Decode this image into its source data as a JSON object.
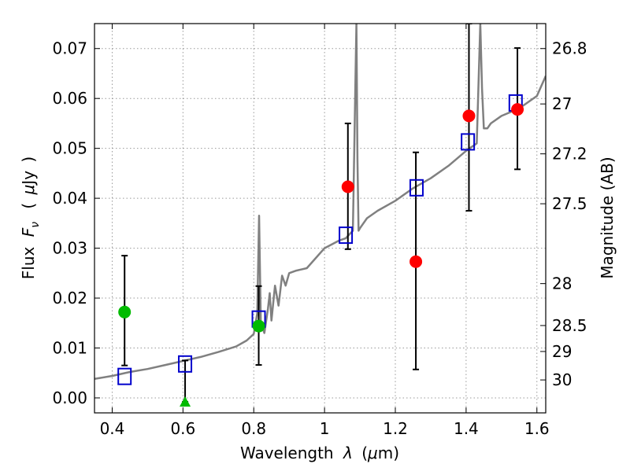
{
  "chart_data": {
    "type": "scatter",
    "xlabel": {
      "pre": "Wavelength",
      "lambda": "λ",
      "paren_open": "(",
      "mu": "μ",
      "unit": "m",
      "paren_close": ")"
    },
    "ylabel": {
      "pre": "Flux",
      "F": "F",
      "nu": "ν",
      "paren_open": "(",
      "mu": "μ",
      "unit": "Jy",
      "paren_close": ")"
    },
    "y2label": "Magnitude (AB)",
    "xlim": [
      0.35,
      1.625
    ],
    "ylim": [
      -0.003,
      0.075
    ],
    "x_ticks": [
      0.4,
      0.6,
      0.8,
      1.0,
      1.2,
      1.4,
      1.6
    ],
    "x_tick_labels": [
      "0.4",
      "0.6",
      "0.8",
      "1",
      "1.2",
      "1.4",
      "1.6"
    ],
    "y_ticks": [
      0.0,
      0.01,
      0.02,
      0.03,
      0.04,
      0.05,
      0.06,
      0.07
    ],
    "y_tick_labels": [
      "0.00",
      "0.01",
      "0.02",
      "0.03",
      "0.04",
      "0.05",
      "0.06",
      "0.07"
    ],
    "y2_tick_labels": [
      "26.8",
      "27",
      "27.2",
      "27.5",
      "28",
      "28.5",
      "29",
      "30"
    ],
    "y2_tick_flux": [
      0.07,
      0.0589,
      0.0489,
      0.0389,
      0.0229,
      0.0145,
      0.0093,
      0.0036
    ],
    "grid": true,
    "colors": {
      "model_line": "#808080",
      "model_points": "#0000cc",
      "detections": "#ff0000",
      "ground_points": "#00bb00",
      "errorbars": "#000000",
      "grid": "#999999"
    },
    "series": [
      {
        "role": "model_spectrum_line",
        "x": [
          0.35,
          0.4,
          0.45,
          0.5,
          0.55,
          0.6,
          0.65,
          0.7,
          0.75,
          0.78,
          0.8,
          0.81,
          0.815,
          0.82,
          0.83,
          0.84,
          0.845,
          0.85,
          0.86,
          0.87,
          0.88,
          0.89,
          0.9,
          0.92,
          0.95,
          1.0,
          1.04,
          1.06,
          1.08,
          1.09,
          1.093,
          1.096,
          1.1,
          1.12,
          1.15,
          1.2,
          1.25,
          1.3,
          1.35,
          1.4,
          1.43,
          1.44,
          1.445,
          1.45,
          1.46,
          1.47,
          1.5,
          1.55,
          1.6,
          1.625
        ],
        "y": [
          0.0038,
          0.0044,
          0.0052,
          0.0058,
          0.0066,
          0.0074,
          0.0082,
          0.0092,
          0.0103,
          0.0115,
          0.0128,
          0.017,
          0.0365,
          0.015,
          0.013,
          0.0178,
          0.021,
          0.0155,
          0.0225,
          0.0185,
          0.0245,
          0.0225,
          0.025,
          0.0255,
          0.026,
          0.03,
          0.0315,
          0.032,
          0.0335,
          0.075,
          0.048,
          0.0335,
          0.034,
          0.036,
          0.0375,
          0.0395,
          0.042,
          0.044,
          0.0465,
          0.0495,
          0.051,
          0.075,
          0.062,
          0.054,
          0.054,
          0.055,
          0.0565,
          0.058,
          0.0605,
          0.0645
        ]
      },
      {
        "role": "model_photometry",
        "marker": "square",
        "x": [
          0.435,
          0.606,
          0.814,
          1.06,
          1.26,
          1.405,
          1.54
        ],
        "y": [
          0.0043,
          0.0068,
          0.0158,
          0.0326,
          0.0421,
          0.0513,
          0.0591
        ]
      },
      {
        "role": "space_detections",
        "marker": "circle",
        "x": [
          1.066,
          1.258,
          1.408,
          1.545
        ],
        "y": [
          0.0423,
          0.0273,
          0.0565,
          0.0578
        ],
        "yerr_low": [
          0.0298,
          0.0057,
          0.0375,
          0.0458
        ],
        "yerr_high": [
          0.055,
          0.0492,
          0.075,
          0.0701
        ]
      },
      {
        "role": "ground_detections",
        "marker": "circle",
        "x": [
          0.435,
          0.814
        ],
        "y": [
          0.0172,
          0.0144
        ],
        "yerr_low": [
          0.0065,
          0.0066
        ],
        "yerr_high": [
          0.0285,
          0.0224
        ]
      },
      {
        "role": "ground_limit",
        "marker": "triangle",
        "x": [
          0.606
        ],
        "y": [
          -0.0008
        ],
        "yerr_low": [
          -0.0008
        ],
        "yerr_high": [
          0.0075
        ]
      }
    ]
  }
}
